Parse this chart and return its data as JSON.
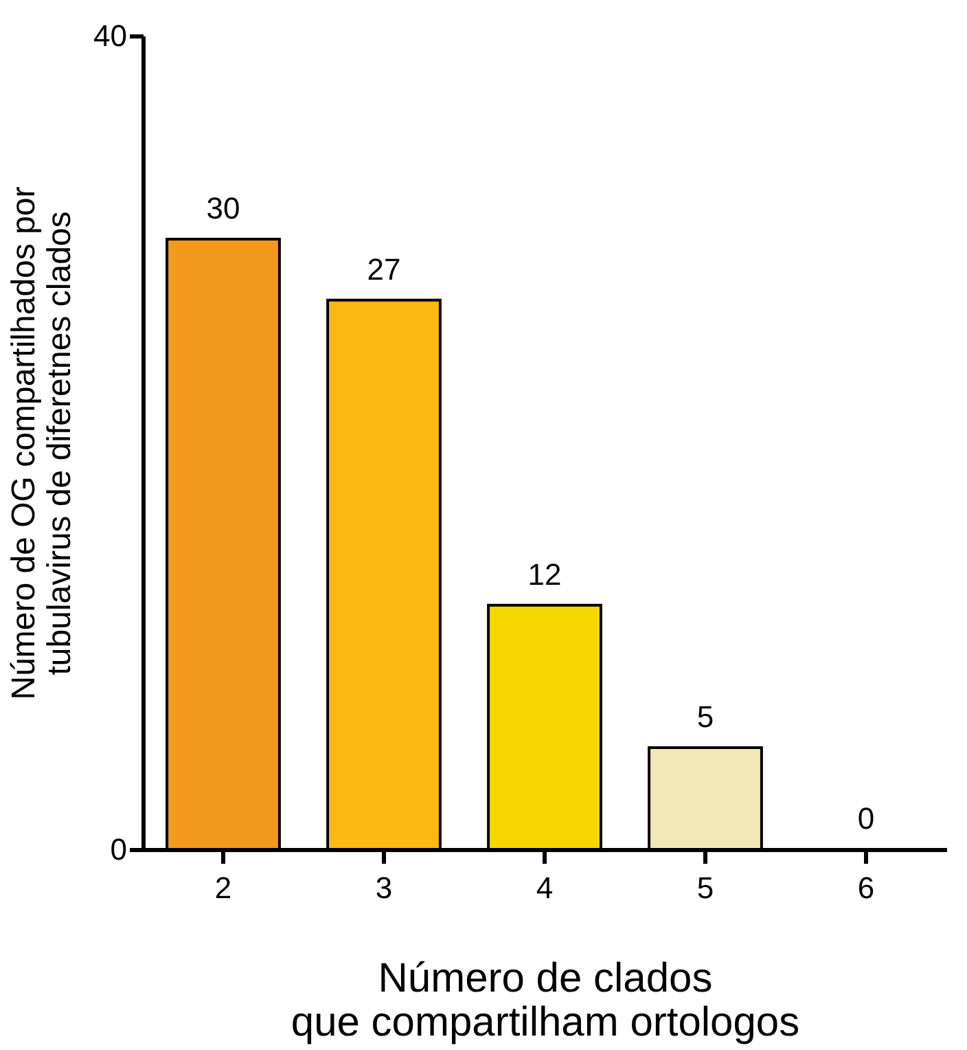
{
  "chart_data": {
    "type": "bar",
    "categories": [
      "2",
      "3",
      "4",
      "5",
      "6"
    ],
    "values": [
      30,
      27,
      12,
      5,
      0
    ],
    "colors": [
      "#f39a1e",
      "#fbb813",
      "#f6d800",
      "#f1e8b8",
      "#f1e8b8"
    ],
    "ylim": [
      0,
      40
    ],
    "yticks": [
      0,
      40
    ],
    "grid": false,
    "data_labels": true,
    "xlabel": "Número de clados\nque compartilham ortologos",
    "ylabel": "Número de OG compartilhados por\ntubulavirus de diferetnes clados"
  }
}
